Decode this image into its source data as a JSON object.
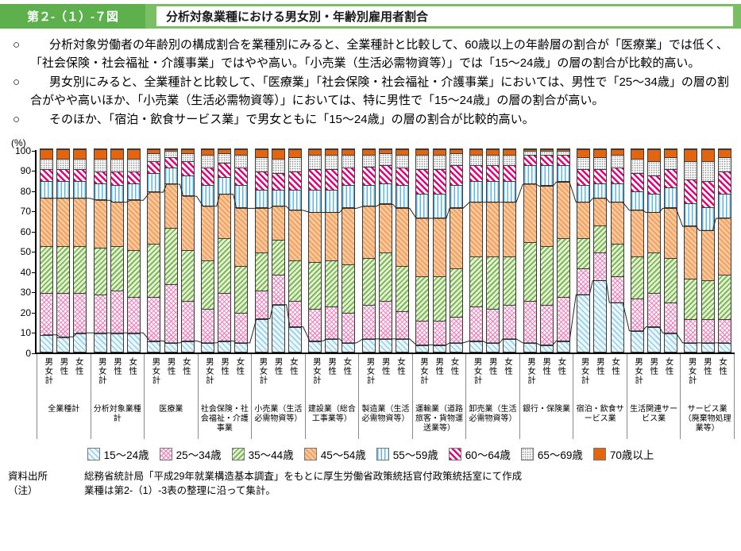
{
  "header": {
    "figure_label": "第２-（１）-７図",
    "title": "分析対象業種における男女別・年齢別雇用者割合"
  },
  "bullets": [
    "分析対象労働者の年齢別の構成割合を業種別にみると、全業種計と比較して、60歳以上の年齢層の割合が「医療業」では低く、「社会保険・社会福祉・介護事業」ではやや高い。「小売業（生活必需物資等）」では「15～24歳」の層の割合が比較的高い。",
    "男女別にみると、全業種計と比較して、「医療業」「社会保険・社会福祉・介護事業」においては、男性で「25～34歳」の層の割合がやや高いほか、「小売業（生活必需物資等）」においては、特に男性で「15～24歳」の層の割合が高い。",
    "そのほか、「宿泊・飲食サービス業」で男女ともに「15～24歳」の層の割合が比較的高い。"
  ],
  "chart_data": {
    "type": "bar",
    "subtype": "stacked-100pct",
    "unit_label": "(%)",
    "ylim": [
      0,
      100
    ],
    "yticks": [
      0,
      10,
      20,
      30,
      40,
      50,
      60,
      70,
      80,
      90,
      100
    ],
    "bar_labels": [
      "男女計",
      "男性",
      "女性"
    ],
    "connector_boundaries": [
      1,
      4
    ],
    "age_groups": [
      {
        "label": "15～24歳",
        "pattern": "diagonal-stripes",
        "color": "#9fd4ec"
      },
      {
        "label": "25～34歳",
        "pattern": "pink-crosshatch",
        "color": "#ee7aba"
      },
      {
        "label": "35～44歳",
        "pattern": "green-diagonal",
        "color": "#7db954"
      },
      {
        "label": "45～54歳",
        "pattern": "orange-fine-hatch",
        "color": "#f3a468"
      },
      {
        "label": "55～59歳",
        "pattern": "vertical-blue-lines",
        "color": "#59b8e8"
      },
      {
        "label": "60～64歳",
        "pattern": "magenta-diagonal",
        "color": "#e5007f"
      },
      {
        "label": "65～69歳",
        "pattern": "gray-dots",
        "color": "#8d8d8d"
      },
      {
        "label": "70歳以上",
        "pattern": "solid-dark-orange",
        "color": "#e3650f"
      }
    ],
    "groups": [
      {
        "name": "全業種計",
        "bars": [
          [
            8,
            21,
            23,
            24,
            8,
            6,
            5,
            5
          ],
          [
            7,
            22,
            23,
            24,
            8,
            6,
            5,
            5
          ],
          [
            9,
            20,
            23,
            24,
            8,
            6,
            5,
            5
          ]
        ]
      },
      {
        "name": "分析対象業種計",
        "bars": [
          [
            9,
            19,
            23,
            24,
            8,
            6,
            6,
            5
          ],
          [
            9,
            21,
            22,
            22,
            8,
            7,
            6,
            5
          ],
          [
            9,
            18,
            23,
            25,
            8,
            6,
            6,
            5
          ]
        ]
      },
      {
        "name": "医療業",
        "bars": [
          [
            5,
            22,
            26,
            26,
            9,
            6,
            4,
            2
          ],
          [
            4,
            29,
            28,
            22,
            8,
            5,
            3,
            1
          ],
          [
            5,
            20,
            25,
            27,
            10,
            7,
            4,
            2
          ]
        ]
      },
      {
        "name": "社会保険・社会福祉・介護事業",
        "bars": [
          [
            4,
            17,
            24,
            27,
            10,
            9,
            6,
            3
          ],
          [
            5,
            24,
            27,
            22,
            8,
            7,
            5,
            2
          ],
          [
            4,
            15,
            23,
            29,
            11,
            9,
            6,
            3
          ]
        ]
      },
      {
        "name": "小売業（生活必需物資等）",
        "bars": [
          [
            16,
            14,
            19,
            22,
            9,
            9,
            7,
            4
          ],
          [
            23,
            15,
            17,
            17,
            8,
            8,
            7,
            5
          ],
          [
            12,
            13,
            20,
            25,
            10,
            9,
            7,
            4
          ]
        ]
      },
      {
        "name": "建設業（総合工事業等）",
        "bars": [
          [
            5,
            16,
            23,
            25,
            11,
            10,
            7,
            3
          ],
          [
            6,
            16,
            23,
            24,
            11,
            10,
            7,
            3
          ],
          [
            4,
            15,
            24,
            28,
            11,
            9,
            6,
            3
          ]
        ]
      },
      {
        "name": "製造業（生活必需物資等）",
        "bars": [
          [
            6,
            17,
            23,
            26,
            10,
            9,
            6,
            3
          ],
          [
            6,
            19,
            24,
            24,
            10,
            9,
            6,
            2
          ],
          [
            6,
            14,
            22,
            29,
            11,
            9,
            6,
            3
          ]
        ]
      },
      {
        "name": "運輸業（道路旅客・貨物運送業等）",
        "bars": [
          [
            3,
            12,
            22,
            29,
            12,
            12,
            7,
            3
          ],
          [
            3,
            12,
            22,
            29,
            12,
            12,
            7,
            3
          ],
          [
            4,
            13,
            24,
            30,
            11,
            10,
            6,
            2
          ]
        ]
      },
      {
        "name": "卸売業（生活必需物資等）",
        "bars": [
          [
            5,
            17,
            25,
            27,
            10,
            8,
            5,
            3
          ],
          [
            4,
            17,
            26,
            27,
            10,
            8,
            5,
            3
          ],
          [
            6,
            17,
            24,
            27,
            10,
            8,
            5,
            3
          ]
        ]
      },
      {
        "name": "銀行・保険業",
        "bars": [
          [
            4,
            21,
            29,
            29,
            9,
            5,
            2,
            1
          ],
          [
            3,
            20,
            29,
            30,
            10,
            5,
            2,
            1
          ],
          [
            5,
            22,
            29,
            28,
            8,
            5,
            2,
            1
          ]
        ]
      },
      {
        "name": "宿泊・飲食サービス業",
        "bars": [
          [
            28,
            13,
            15,
            18,
            8,
            8,
            6,
            4
          ],
          [
            35,
            14,
            13,
            14,
            7,
            7,
            6,
            4
          ],
          [
            24,
            13,
            16,
            21,
            9,
            8,
            6,
            3
          ]
        ]
      },
      {
        "name": "生活関連サービス業",
        "bars": [
          [
            10,
            16,
            21,
            23,
            9,
            9,
            7,
            5
          ],
          [
            12,
            17,
            20,
            20,
            9,
            9,
            7,
            6
          ],
          [
            9,
            15,
            22,
            25,
            10,
            9,
            6,
            4
          ]
        ]
      },
      {
        "name": "サービス業（廃棄物処理業等）",
        "bars": [
          [
            4,
            12,
            20,
            26,
            11,
            12,
            9,
            6
          ],
          [
            4,
            12,
            19,
            25,
            11,
            13,
            10,
            6
          ],
          [
            4,
            12,
            22,
            28,
            12,
            11,
            7,
            4
          ]
        ]
      }
    ]
  },
  "footer": {
    "source_label": "資料出所",
    "source_text": "総務省統計局「平成29年就業構造基本調査」をもとに厚生労働省政策統括官付政策統括室にて作成",
    "note_label": "（注）",
    "note_text": "業種は第2-（1）-3表の整理に沿って集計。"
  }
}
